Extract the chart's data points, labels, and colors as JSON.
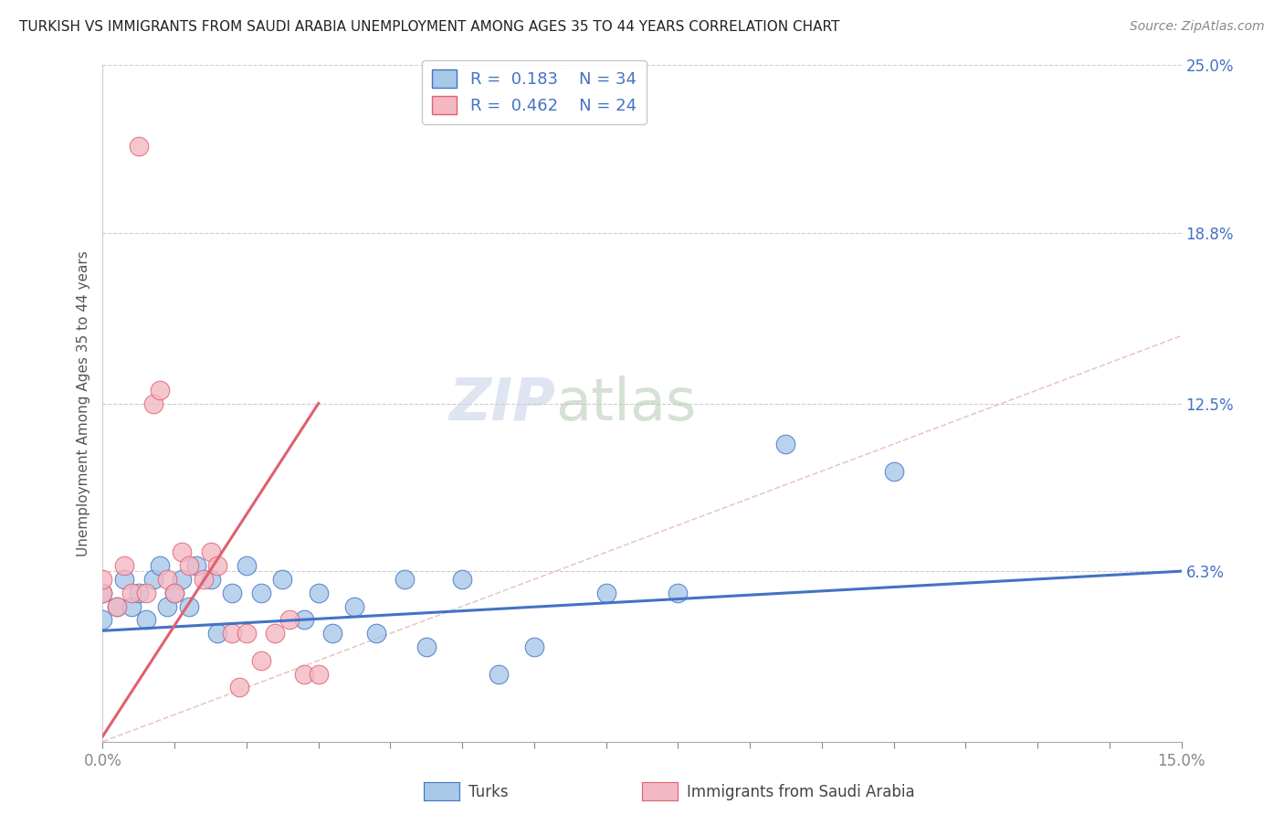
{
  "title": "TURKISH VS IMMIGRANTS FROM SAUDI ARABIA UNEMPLOYMENT AMONG AGES 35 TO 44 YEARS CORRELATION CHART",
  "source": "Source: ZipAtlas.com",
  "ylabel": "Unemployment Among Ages 35 to 44 years",
  "xlabel_turks": "Turks",
  "xlabel_saudi": "Immigrants from Saudi Arabia",
  "xlim": [
    0.0,
    0.15
  ],
  "ylim": [
    0.0,
    0.25
  ],
  "ytick_vals_right": [
    0.063,
    0.125,
    0.188,
    0.25
  ],
  "ytick_labels_right": [
    "6.3%",
    "12.5%",
    "18.8%",
    "25.0%"
  ],
  "R_turks": 0.183,
  "N_turks": 34,
  "R_saudi": 0.462,
  "N_saudi": 24,
  "turks_color": "#a8c8e8",
  "saudi_color": "#f4b8c4",
  "trend_turks_color": "#4472c4",
  "trend_saudi_color": "#e06070",
  "diagonal_color": "#e8c8cc",
  "watermark_zip_color": "#c8d4e8",
  "watermark_atlas_color": "#c8d8c8",
  "background_color": "#ffffff",
  "turks_scatter_x": [
    0.0,
    0.0,
    0.002,
    0.003,
    0.004,
    0.005,
    0.006,
    0.007,
    0.008,
    0.009,
    0.01,
    0.011,
    0.012,
    0.013,
    0.015,
    0.016,
    0.018,
    0.02,
    0.022,
    0.025,
    0.028,
    0.03,
    0.032,
    0.035,
    0.038,
    0.042,
    0.045,
    0.05,
    0.055,
    0.06,
    0.07,
    0.08,
    0.095,
    0.11
  ],
  "turks_scatter_y": [
    0.045,
    0.055,
    0.05,
    0.06,
    0.05,
    0.055,
    0.045,
    0.06,
    0.065,
    0.05,
    0.055,
    0.06,
    0.05,
    0.065,
    0.06,
    0.04,
    0.055,
    0.065,
    0.055,
    0.06,
    0.045,
    0.055,
    0.04,
    0.05,
    0.04,
    0.06,
    0.035,
    0.06,
    0.025,
    0.035,
    0.055,
    0.055,
    0.11,
    0.1
  ],
  "saudi_scatter_x": [
    0.0,
    0.0,
    0.002,
    0.003,
    0.004,
    0.005,
    0.006,
    0.007,
    0.008,
    0.009,
    0.01,
    0.011,
    0.012,
    0.014,
    0.015,
    0.016,
    0.018,
    0.019,
    0.02,
    0.022,
    0.024,
    0.026,
    0.028,
    0.03
  ],
  "saudi_scatter_y": [
    0.055,
    0.06,
    0.05,
    0.065,
    0.055,
    0.22,
    0.055,
    0.125,
    0.13,
    0.06,
    0.055,
    0.07,
    0.065,
    0.06,
    0.07,
    0.065,
    0.04,
    0.02,
    0.04,
    0.03,
    0.04,
    0.045,
    0.025,
    0.025
  ],
  "trend_turks_x0": 0.0,
  "trend_turks_y0": 0.041,
  "trend_turks_x1": 0.15,
  "trend_turks_y1": 0.063,
  "trend_saudi_x0": 0.0,
  "trend_saudi_y0": 0.002,
  "trend_saudi_x1": 0.03,
  "trend_saudi_y1": 0.125
}
